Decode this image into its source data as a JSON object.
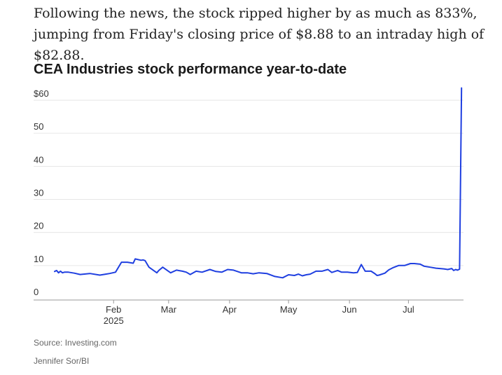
{
  "article": {
    "lead": "Following the news, the stock ripped higher by as much as 833%, jumping from Friday's closing price of $8.88 to an intraday high of $82.88."
  },
  "source": "Source: Investing.com",
  "credit": "Jennifer Sor/BI",
  "colors": {
    "line": "#1f3fe0",
    "grid": "#e6e6e6",
    "axis": "#999999",
    "text": "#333333"
  },
  "chart_data": {
    "type": "line",
    "title": "CEA Industries stock performance year-to-date",
    "xlabel": "",
    "ylabel": "",
    "ylim": [
      0,
      60
    ],
    "yticks": [
      0,
      10,
      20,
      30,
      40,
      50,
      60
    ],
    "ytick_labels": [
      "0",
      "10",
      "20",
      "30",
      "40",
      "50",
      "$60"
    ],
    "xlim": [
      "2025-01-02",
      "2025-07-29"
    ],
    "xticks": [
      {
        "date": "2025-02-01",
        "label": "Feb",
        "sublabel": "2025"
      },
      {
        "date": "2025-03-01",
        "label": "Mar",
        "sublabel": ""
      },
      {
        "date": "2025-04-01",
        "label": "Apr",
        "sublabel": ""
      },
      {
        "date": "2025-05-01",
        "label": "May",
        "sublabel": ""
      },
      {
        "date": "2025-06-01",
        "label": "Jun",
        "sublabel": ""
      },
      {
        "date": "2025-07-01",
        "label": "Jul",
        "sublabel": ""
      }
    ],
    "grid": true,
    "series": [
      {
        "x": [
          "2025-01-02",
          "2025-01-03",
          "2025-01-04",
          "2025-01-05",
          "2025-01-06",
          "2025-01-07",
          "2025-01-09",
          "2025-01-12",
          "2025-01-15",
          "2025-01-20",
          "2025-01-25",
          "2025-01-28",
          "2025-01-30",
          "2025-02-02",
          "2025-02-05",
          "2025-02-08",
          "2025-02-11",
          "2025-02-12",
          "2025-02-15",
          "2025-02-16",
          "2025-02-17",
          "2025-02-19",
          "2025-02-23",
          "2025-02-24",
          "2025-02-26",
          "2025-03-02",
          "2025-03-05",
          "2025-03-08",
          "2025-03-10",
          "2025-03-12",
          "2025-03-15",
          "2025-03-18",
          "2025-03-22",
          "2025-03-25",
          "2025-03-28",
          "2025-03-31",
          "2025-04-03",
          "2025-04-07",
          "2025-04-10",
          "2025-04-13",
          "2025-04-16",
          "2025-04-20",
          "2025-04-24",
          "2025-04-28",
          "2025-05-01",
          "2025-05-04",
          "2025-05-06",
          "2025-05-08",
          "2025-05-10",
          "2025-05-12",
          "2025-05-15",
          "2025-05-18",
          "2025-05-21",
          "2025-05-23",
          "2025-05-26",
          "2025-05-28",
          "2025-05-31",
          "2025-06-03",
          "2025-06-05",
          "2025-06-07",
          "2025-06-09",
          "2025-06-12",
          "2025-06-14",
          "2025-06-15",
          "2025-06-16",
          "2025-06-19",
          "2025-06-21",
          "2025-06-23",
          "2025-06-26",
          "2025-06-29",
          "2025-07-02",
          "2025-07-04",
          "2025-07-07",
          "2025-07-09",
          "2025-07-12",
          "2025-07-15",
          "2025-07-19",
          "2025-07-21",
          "2025-07-23",
          "2025-07-24",
          "2025-07-25",
          "2025-07-26",
          "2025-07-27",
          "2025-07-28"
        ],
        "values": [
          8.2,
          8.5,
          7.8,
          8.3,
          7.8,
          8.0,
          8.0,
          7.7,
          7.3,
          7.6,
          7.1,
          7.4,
          7.6,
          8.0,
          11.0,
          11.0,
          10.7,
          12.0,
          11.6,
          11.7,
          11.5,
          9.5,
          7.8,
          8.5,
          9.5,
          7.8,
          8.6,
          8.3,
          8.0,
          7.3,
          8.3,
          8.0,
          8.8,
          8.2,
          8.0,
          8.8,
          8.6,
          7.8,
          7.8,
          7.5,
          7.8,
          7.6,
          6.7,
          6.3,
          7.2,
          7.0,
          7.4,
          6.9,
          7.2,
          7.4,
          8.3,
          8.3,
          8.8,
          7.9,
          8.5,
          8.0,
          8.0,
          7.8,
          7.9,
          10.3,
          8.3,
          8.3,
          7.5,
          7.0,
          7.1,
          7.7,
          8.7,
          9.3,
          10.0,
          10.0,
          10.6,
          10.6,
          10.4,
          9.8,
          9.5,
          9.2,
          9.0,
          8.8,
          9.1,
          8.5,
          8.8,
          8.6,
          8.9,
          63.7
        ]
      }
    ]
  }
}
